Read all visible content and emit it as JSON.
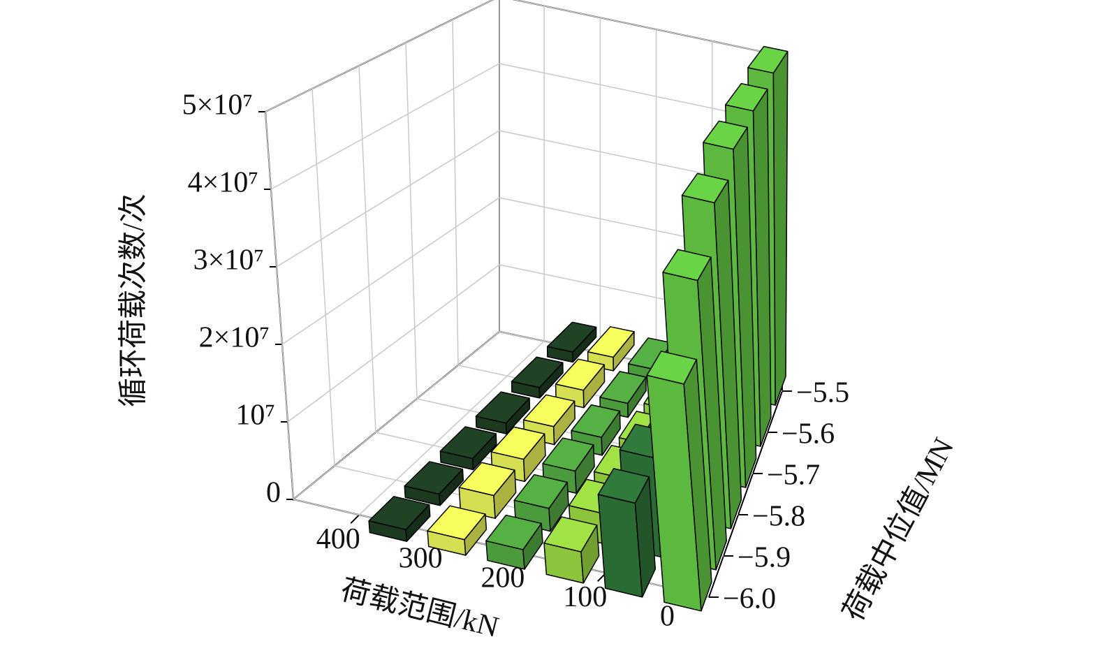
{
  "chart_data": {
    "type": "bar3d",
    "xlabel": "荷载范围/kN",
    "ylabel": "荷载中位值/MN",
    "zlabel": "循环荷载次数/次",
    "xlim": [
      480,
      -25
    ],
    "xticks": [
      400,
      300,
      200,
      100,
      0
    ],
    "ylim": [
      -6.0,
      -5.5
    ],
    "yticks": [
      {
        "value": -6.0,
        "label": "−6.0"
      },
      {
        "value": -5.9,
        "label": "−5.9"
      },
      {
        "value": -5.8,
        "label": "−5.8"
      },
      {
        "value": -5.7,
        "label": "−5.7"
      },
      {
        "value": -5.6,
        "label": "−5.6"
      },
      {
        "value": -5.5,
        "label": "−5.5"
      }
    ],
    "zlim": [
      0,
      50000000
    ],
    "zticks": [
      0,
      {
        "value": 10000000,
        "label": "10⁷"
      },
      {
        "value": 20000000,
        "label": "2×10⁷"
      },
      {
        "value": 30000000,
        "label": "3×10⁷"
      },
      {
        "value": 40000000,
        "label": "4×10⁷"
      },
      {
        "value": 50000000,
        "label": "5×10⁷"
      }
    ],
    "y": [
      -6.0,
      -5.9,
      -5.8,
      -5.7,
      -5.6,
      -5.5
    ],
    "grid": true,
    "series": [
      {
        "x": 350,
        "color": "#1b3a1f",
        "values": [
          1500000,
          1500000,
          1500000,
          1500000,
          1500000,
          1500000
        ]
      },
      {
        "x": 280,
        "color": "#d6df52",
        "values": [
          2000000,
          3000000,
          3000000,
          2500000,
          2500000,
          2000000
        ]
      },
      {
        "x": 210,
        "color": "#4b9a3c",
        "values": [
          2500000,
          3000000,
          3000000,
          2500000,
          2000000,
          1500000
        ]
      },
      {
        "x": 140,
        "color": "#8cc53c",
        "values": [
          4000000,
          4000000,
          3500000,
          3000000,
          2500000,
          2000000
        ]
      },
      {
        "x": 70,
        "color": "#2a6a33",
        "values": [
          12000000,
          13000000,
          10000000,
          8000000,
          6000000,
          5000000
        ]
      },
      {
        "x": 0,
        "color": "#5cb83e",
        "values": [
          29000000,
          38000000,
          44000000,
          47000000,
          48000000,
          49000000
        ]
      }
    ]
  }
}
